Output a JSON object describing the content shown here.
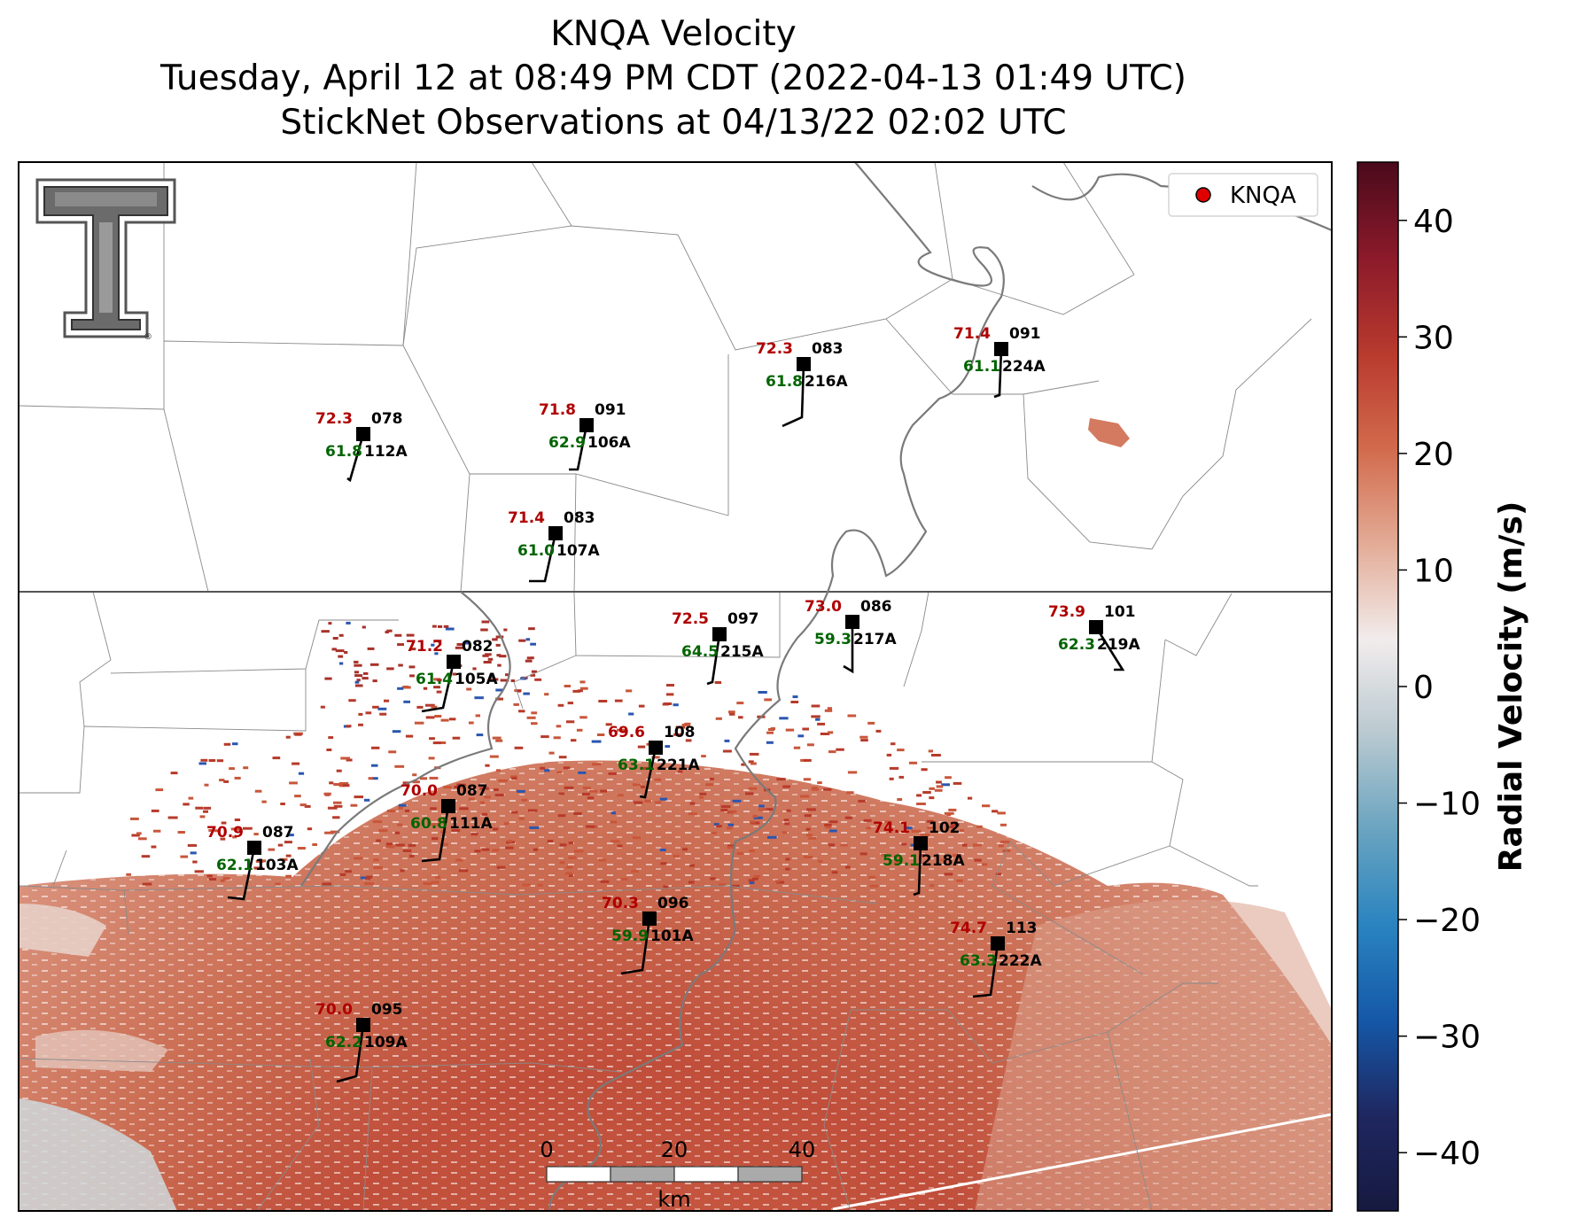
{
  "title": {
    "line1": "KNQA Velocity",
    "line2": "Tuesday, April 12 at 08:49 PM CDT (2022-04-13 01:49 UTC)",
    "line3": "StickNet Observations at 04/13/22 02:02 UTC"
  },
  "legend": {
    "label": "KNQA",
    "marker_color": "#e00000",
    "placement": "upper-right"
  },
  "logo": {
    "icon": "texas-tech-double-t-logo",
    "mark": "®"
  },
  "colorbar": {
    "label": "Radial Velocity (m/s)",
    "range": [
      -45,
      45
    ],
    "ticks": [
      {
        "value": 40,
        "label": "40"
      },
      {
        "value": 30,
        "label": "30"
      },
      {
        "value": 20,
        "label": "20"
      },
      {
        "value": 10,
        "label": "10"
      },
      {
        "value": 0,
        "label": "0"
      },
      {
        "value": -10,
        "label": "−10"
      },
      {
        "value": -20,
        "label": "−20"
      },
      {
        "value": -30,
        "label": "−30"
      },
      {
        "value": -40,
        "label": "−40"
      }
    ],
    "colors": [
      "#4a0a1c",
      "#8b1a2a",
      "#b83a2e",
      "#d26a4c",
      "#e3ab96",
      "#f2ecec",
      "#b9c9d0",
      "#6aa4c0",
      "#2a84c0",
      "#1558a8",
      "#1f2760",
      "#161a40"
    ]
  },
  "scale_bar": {
    "unit": "km",
    "ticks": [
      "0",
      "20",
      "40"
    ]
  },
  "stations": [
    {
      "id": "112A",
      "temp": "72.3",
      "dew": "61.8",
      "dir": "078"
    },
    {
      "id": "106A",
      "temp": "71.8",
      "dew": "62.9",
      "dir": "091"
    },
    {
      "id": "216A",
      "temp": "72.3",
      "dew": "61.8",
      "dir": "083"
    },
    {
      "id": "224A",
      "temp": "71.4",
      "dew": "61.1",
      "dir": "091"
    },
    {
      "id": "107A",
      "temp": "71.4",
      "dew": "61.0",
      "dir": "083"
    },
    {
      "id": "215A",
      "temp": "72.5",
      "dew": "64.5",
      "dir": "097"
    },
    {
      "id": "217A",
      "temp": "73.0",
      "dew": "59.3",
      "dir": "086"
    },
    {
      "id": "219A",
      "temp": "73.9",
      "dew": "62.3",
      "dir": "101"
    },
    {
      "id": "105A",
      "temp": "71.2",
      "dew": "61.4",
      "dir": "082"
    },
    {
      "id": "221A",
      "temp": "69.6",
      "dew": "63.1",
      "dir": "108"
    },
    {
      "id": "111A",
      "temp": "70.0",
      "dew": "60.8",
      "dir": "087"
    },
    {
      "id": "103A",
      "temp": "70.9",
      "dew": "62.1",
      "dir": "087"
    },
    {
      "id": "218A",
      "temp": "74.1",
      "dew": "59.1",
      "dir": "102"
    },
    {
      "id": "101A",
      "temp": "70.3",
      "dew": "59.9",
      "dir": "096"
    },
    {
      "id": "222A",
      "temp": "74.7",
      "dew": "63.3",
      "dir": "113"
    },
    {
      "id": "109A",
      "temp": "70.0",
      "dew": "62.2",
      "dir": "095"
    }
  ],
  "styles": {
    "temp_color": "#b00000",
    "dew_color": "#006400",
    "id_color": "#000000",
    "river_color": "#7a7a7a"
  }
}
